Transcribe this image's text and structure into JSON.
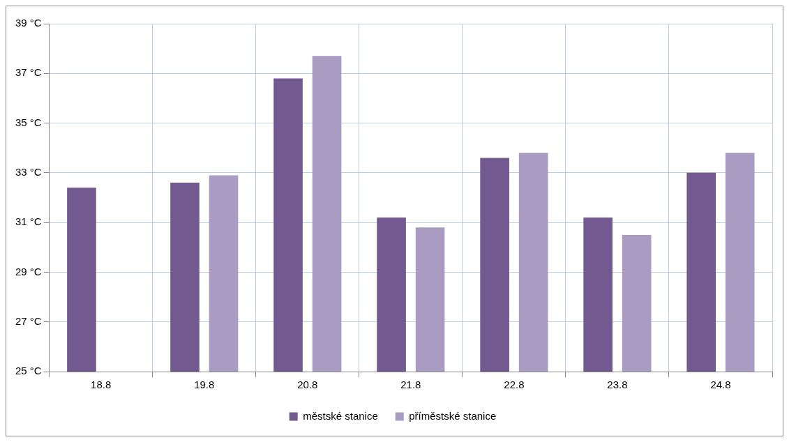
{
  "chart_data": {
    "type": "bar",
    "categories": [
      "18.8",
      "19.8",
      "20.8",
      "21.8",
      "22.8",
      "23.8",
      "24.8"
    ],
    "series": [
      {
        "name": "městské stanice",
        "color": "#725990",
        "values": [
          32.4,
          32.6,
          36.8,
          31.2,
          33.6,
          31.2,
          33.0
        ]
      },
      {
        "name": "příměstské stanice",
        "color": "#a99bc1",
        "values": [
          null,
          32.9,
          37.7,
          30.8,
          33.8,
          30.5,
          33.8
        ]
      }
    ],
    "ylim": [
      25,
      39
    ],
    "yticks": [
      {
        "value": 25,
        "label": "25 °C"
      },
      {
        "value": 27,
        "label": "27 °C"
      },
      {
        "value": 29,
        "label": "29 °C"
      },
      {
        "value": 31,
        "label": "31 °C"
      },
      {
        "value": 33,
        "label": "33 °C"
      },
      {
        "value": 35,
        "label": "35 °C"
      },
      {
        "value": 37,
        "label": "37 °C"
      },
      {
        "value": 39,
        "label": "39 °C"
      }
    ],
    "grid": true,
    "legend": "bottom"
  }
}
